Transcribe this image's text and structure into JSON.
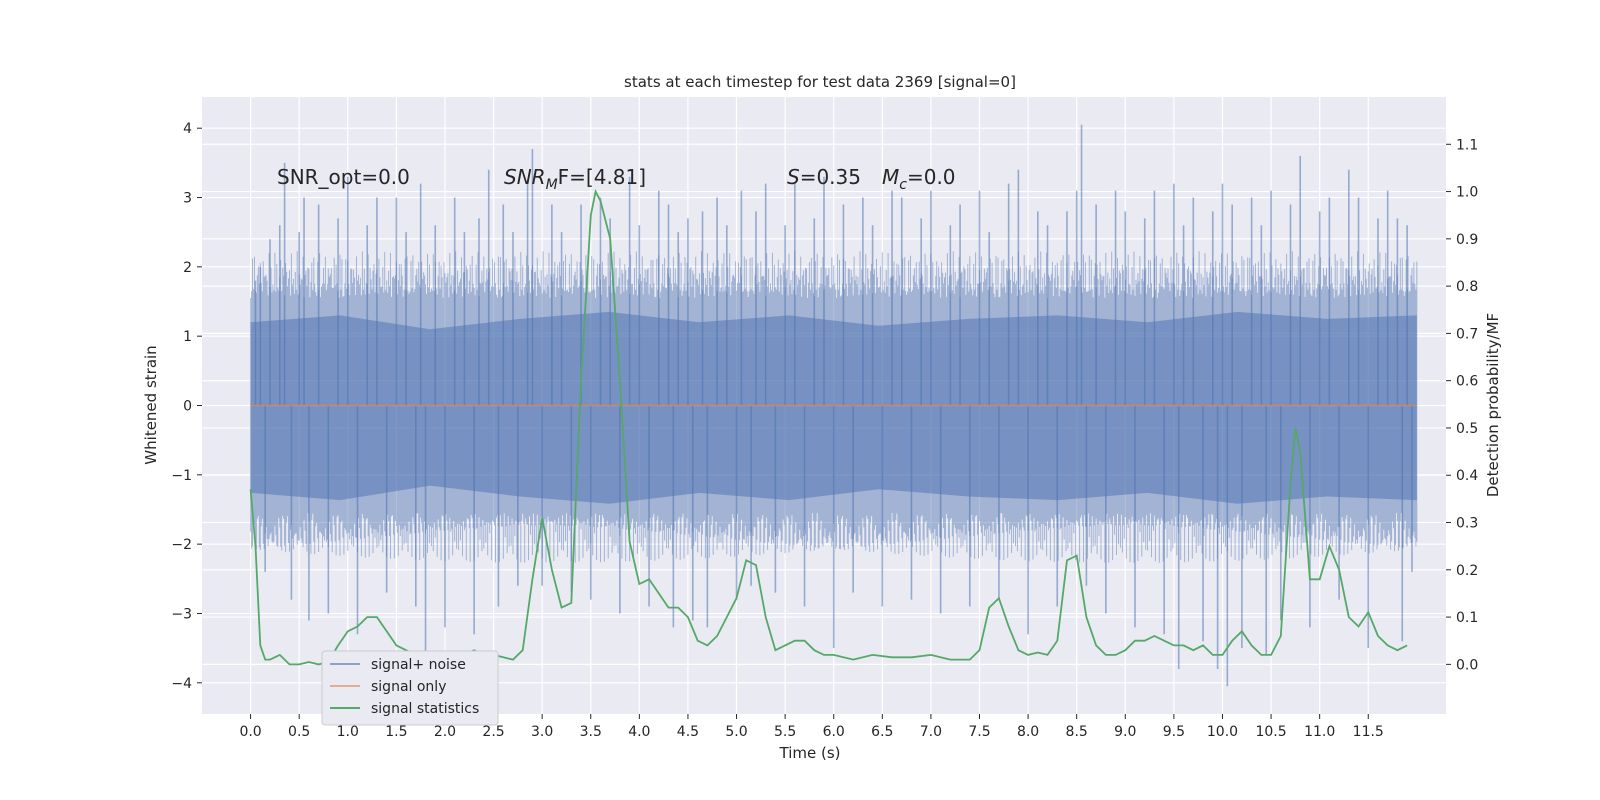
{
  "chart_data": {
    "type": "line",
    "title": "stats at each timestep for test data 2369 [signal=0]",
    "xlabel": "Time (s)",
    "ylabel_left": "Whitened strain",
    "ylabel_right": "Detection probability/MF",
    "xlim": [
      -0.5,
      12.3
    ],
    "ylim_left": [
      -4.45,
      4.45
    ],
    "ylim_right": [
      -0.105,
      1.2
    ],
    "x_ticks": [
      0.0,
      0.5,
      1.0,
      1.5,
      2.0,
      2.5,
      3.0,
      3.5,
      4.0,
      4.5,
      5.0,
      5.5,
      6.0,
      6.5,
      7.0,
      7.5,
      8.0,
      8.5,
      9.0,
      9.5,
      10.0,
      10.5,
      11.0,
      11.5
    ],
    "x_tick_labels": [
      "0.0",
      "0.5",
      "1.0",
      "1.5",
      "2.0",
      "2.5",
      "3.0",
      "3.5",
      "4.0",
      "4.5",
      "5.0",
      "5.5",
      "6.0",
      "6.5",
      "7.0",
      "7.5",
      "8.0",
      "8.5",
      "9.0",
      "9.5",
      "10.0",
      "10.5",
      "11.0",
      "11.5"
    ],
    "y_left_ticks": [
      -4,
      -3,
      -2,
      -1,
      0,
      1,
      2,
      3,
      4
    ],
    "y_left_tick_labels": [
      "−4",
      "−3",
      "−2",
      "−1",
      "0",
      "1",
      "2",
      "3",
      "4"
    ],
    "y_right_ticks": [
      0.0,
      0.1,
      0.2,
      0.3,
      0.4,
      0.5,
      0.6,
      0.7,
      0.8,
      0.9,
      1.0,
      1.1
    ],
    "y_right_tick_labels": [
      "0.0",
      "0.1",
      "0.2",
      "0.3",
      "0.4",
      "0.5",
      "0.6",
      "0.7",
      "0.8",
      "0.9",
      "1.0",
      "1.1"
    ],
    "grid": true,
    "legend_position": "lower-left",
    "annotations": {
      "snr_opt": "SNR_opt=0.0",
      "snr_mf_main": "SNR",
      "snr_mf_sub": "M",
      "snr_mf_rest": "F=[4.81]",
      "s_main": "S",
      "s_rest": "=0.35",
      "mc_main": "M",
      "mc_sub": "c",
      "mc_rest": "=0.0"
    },
    "series": [
      {
        "name": "signal+ noise",
        "axis": "left",
        "color": "#4c72b0",
        "x_range": [
          0.0,
          12.0
        ],
        "envelope": [
          1.2,
          1.3,
          1.1,
          1.25,
          1.35,
          1.2,
          1.3,
          1.15,
          1.25,
          1.3,
          1.2,
          1.35,
          1.25,
          1.3
        ],
        "spikes": [
          [
            0.05,
            1.8
          ],
          [
            0.1,
            2.0
          ],
          [
            0.15,
            -2.4
          ],
          [
            0.2,
            2.4
          ],
          [
            0.3,
            2.6
          ],
          [
            0.35,
            3.5
          ],
          [
            0.42,
            -2.8
          ],
          [
            0.5,
            2.5
          ],
          [
            0.55,
            3.0
          ],
          [
            0.6,
            -3.1
          ],
          [
            0.7,
            2.9
          ],
          [
            0.8,
            -3.0
          ],
          [
            0.9,
            2.7
          ],
          [
            1.0,
            3.3
          ],
          [
            1.1,
            -3.3
          ],
          [
            1.2,
            2.6
          ],
          [
            1.3,
            3.0
          ],
          [
            1.4,
            -2.7
          ],
          [
            1.5,
            3.0
          ],
          [
            1.6,
            2.5
          ],
          [
            1.7,
            -2.9
          ],
          [
            1.75,
            3.2
          ],
          [
            1.8,
            -3.6
          ],
          [
            1.9,
            2.6
          ],
          [
            2.0,
            -3.2
          ],
          [
            2.1,
            3.0
          ],
          [
            2.2,
            2.5
          ],
          [
            2.3,
            -3.3
          ],
          [
            2.35,
            2.7
          ],
          [
            2.45,
            3.4
          ],
          [
            2.55,
            -2.9
          ],
          [
            2.6,
            2.9
          ],
          [
            2.7,
            2.5
          ],
          [
            2.75,
            -2.6
          ],
          [
            2.85,
            3.2
          ],
          [
            2.9,
            3.7
          ],
          [
            3.0,
            -2.6
          ],
          [
            3.1,
            2.9
          ],
          [
            3.2,
            2.5
          ],
          [
            3.3,
            -2.7
          ],
          [
            3.4,
            2.9
          ],
          [
            3.5,
            -2.8
          ],
          [
            3.6,
            3.0
          ],
          [
            3.7,
            2.7
          ],
          [
            3.8,
            -3.0
          ],
          [
            3.9,
            3.3
          ],
          [
            4.0,
            2.6
          ],
          [
            4.1,
            -2.9
          ],
          [
            4.2,
            3.1
          ],
          [
            4.3,
            2.9
          ],
          [
            4.35,
            -3.2
          ],
          [
            4.4,
            2.5
          ],
          [
            4.5,
            2.7
          ],
          [
            4.55,
            -3.1
          ],
          [
            4.65,
            2.8
          ],
          [
            4.7,
            -3.2
          ],
          [
            4.8,
            3.0
          ],
          [
            4.9,
            2.6
          ],
          [
            5.0,
            -2.8
          ],
          [
            5.05,
            3.1
          ],
          [
            5.15,
            -2.6
          ],
          [
            5.2,
            2.8
          ],
          [
            5.3,
            3.2
          ],
          [
            5.4,
            -2.7
          ],
          [
            5.5,
            2.6
          ],
          [
            5.6,
            3.2
          ],
          [
            5.7,
            -2.9
          ],
          [
            5.8,
            2.7
          ],
          [
            5.9,
            3.3
          ],
          [
            6.0,
            -3.5
          ],
          [
            6.1,
            2.9
          ],
          [
            6.2,
            -2.7
          ],
          [
            6.3,
            3.0
          ],
          [
            6.4,
            2.6
          ],
          [
            6.5,
            -2.9
          ],
          [
            6.6,
            3.1
          ],
          [
            6.7,
            3.0
          ],
          [
            6.8,
            -2.8
          ],
          [
            6.9,
            2.7
          ],
          [
            7.0,
            3.1
          ],
          [
            7.1,
            -3.0
          ],
          [
            7.2,
            2.6
          ],
          [
            7.3,
            2.9
          ],
          [
            7.4,
            -2.9
          ],
          [
            7.5,
            3.1
          ],
          [
            7.6,
            2.5
          ],
          [
            7.7,
            -2.8
          ],
          [
            7.8,
            3.2
          ],
          [
            7.9,
            3.4
          ],
          [
            8.0,
            -3.3
          ],
          [
            8.1,
            2.8
          ],
          [
            8.2,
            2.6
          ],
          [
            8.3,
            -2.9
          ],
          [
            8.4,
            2.8
          ],
          [
            8.5,
            3.1
          ],
          [
            8.55,
            4.05
          ],
          [
            8.6,
            -2.6
          ],
          [
            8.7,
            2.9
          ],
          [
            8.8,
            -3.0
          ],
          [
            8.9,
            3.1
          ],
          [
            9.0,
            2.8
          ],
          [
            9.1,
            -3.2
          ],
          [
            9.2,
            2.7
          ],
          [
            9.3,
            3.1
          ],
          [
            9.4,
            -3.3
          ],
          [
            9.5,
            3.2
          ],
          [
            9.55,
            -3.8
          ],
          [
            9.6,
            2.6
          ],
          [
            9.7,
            3.0
          ],
          [
            9.8,
            -3.4
          ],
          [
            9.9,
            2.8
          ],
          [
            9.95,
            -3.8
          ],
          [
            10.0,
            3.2
          ],
          [
            10.05,
            -4.05
          ],
          [
            10.1,
            2.9
          ],
          [
            10.2,
            -3.5
          ],
          [
            10.3,
            3.0
          ],
          [
            10.4,
            2.6
          ],
          [
            10.45,
            -3.6
          ],
          [
            10.5,
            3.1
          ],
          [
            10.6,
            -3.1
          ],
          [
            10.7,
            2.9
          ],
          [
            10.8,
            3.6
          ],
          [
            10.9,
            -3.2
          ],
          [
            11.0,
            2.8
          ],
          [
            11.1,
            3.0
          ],
          [
            11.2,
            -2.8
          ],
          [
            11.3,
            3.4
          ],
          [
            11.4,
            3.0
          ],
          [
            11.5,
            -3.5
          ],
          [
            11.6,
            2.7
          ],
          [
            11.7,
            3.1
          ],
          [
            11.8,
            2.7
          ],
          [
            11.85,
            -3.4
          ],
          [
            11.9,
            2.6
          ],
          [
            11.95,
            -2.4
          ]
        ]
      },
      {
        "name": "signal only",
        "axis": "left",
        "color": "#dd8452",
        "x": [
          0.0,
          12.0
        ],
        "y": [
          0.0,
          0.0
        ]
      },
      {
        "name": "signal statistics",
        "axis": "right",
        "color": "#55a868",
        "x": [
          0.0,
          0.05,
          0.1,
          0.15,
          0.2,
          0.3,
          0.4,
          0.5,
          0.6,
          0.7,
          0.8,
          0.9,
          1.0,
          1.1,
          1.2,
          1.3,
          1.4,
          1.5,
          1.6,
          1.7,
          1.8,
          1.9,
          2.0,
          2.1,
          2.2,
          2.3,
          2.4,
          2.5,
          2.6,
          2.7,
          2.8,
          2.9,
          3.0,
          3.1,
          3.2,
          3.3,
          3.4,
          3.5,
          3.55,
          3.6,
          3.7,
          3.8,
          3.9,
          4.0,
          4.1,
          4.2,
          4.3,
          4.4,
          4.5,
          4.6,
          4.7,
          4.8,
          4.9,
          5.0,
          5.1,
          5.2,
          5.3,
          5.4,
          5.5,
          5.6,
          5.7,
          5.8,
          5.9,
          6.0,
          6.2,
          6.4,
          6.6,
          6.8,
          7.0,
          7.2,
          7.4,
          7.5,
          7.6,
          7.7,
          7.8,
          7.9,
          8.0,
          8.1,
          8.2,
          8.3,
          8.4,
          8.5,
          8.6,
          8.7,
          8.8,
          8.9,
          9.0,
          9.1,
          9.2,
          9.3,
          9.4,
          9.5,
          9.6,
          9.7,
          9.8,
          9.9,
          10.0,
          10.1,
          10.2,
          10.3,
          10.4,
          10.5,
          10.6,
          10.7,
          10.75,
          10.8,
          10.9,
          11.0,
          11.1,
          11.2,
          11.3,
          11.4,
          11.5,
          11.6,
          11.7,
          11.8,
          11.9
        ],
        "y": [
          0.37,
          0.25,
          0.04,
          0.01,
          0.01,
          0.02,
          0.0,
          0.0,
          0.005,
          0.0,
          0.005,
          0.04,
          0.07,
          0.08,
          0.1,
          0.1,
          0.07,
          0.04,
          0.03,
          0.02,
          0.01,
          0.01,
          0.015,
          0.01,
          0.02,
          0.03,
          0.02,
          0.02,
          0.015,
          0.01,
          0.03,
          0.18,
          0.31,
          0.2,
          0.12,
          0.13,
          0.6,
          0.95,
          1.0,
          0.98,
          0.9,
          0.6,
          0.26,
          0.17,
          0.18,
          0.15,
          0.12,
          0.12,
          0.1,
          0.05,
          0.04,
          0.06,
          0.1,
          0.14,
          0.22,
          0.21,
          0.1,
          0.03,
          0.04,
          0.05,
          0.05,
          0.03,
          0.02,
          0.02,
          0.01,
          0.02,
          0.015,
          0.015,
          0.02,
          0.01,
          0.01,
          0.03,
          0.12,
          0.14,
          0.08,
          0.03,
          0.02,
          0.025,
          0.02,
          0.05,
          0.22,
          0.23,
          0.1,
          0.04,
          0.02,
          0.02,
          0.03,
          0.05,
          0.05,
          0.06,
          0.05,
          0.04,
          0.04,
          0.03,
          0.04,
          0.02,
          0.02,
          0.05,
          0.07,
          0.04,
          0.02,
          0.02,
          0.06,
          0.38,
          0.5,
          0.45,
          0.18,
          0.18,
          0.25,
          0.2,
          0.1,
          0.08,
          0.11,
          0.06,
          0.04,
          0.03,
          0.04
        ]
      }
    ]
  }
}
